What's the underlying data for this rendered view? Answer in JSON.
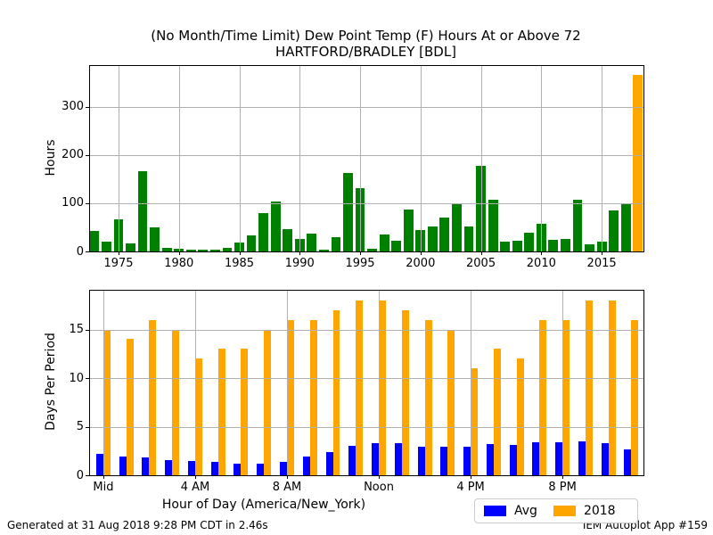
{
  "title": {
    "line1": "(No Month/Time Limit) Dew Point Temp (F) Hours At or Above 72",
    "line2": "HARTFORD/BRADLEY [BDL]"
  },
  "footer": {
    "left": "Generated at 31 Aug 2018 9:28 PM CDT in 2.46s",
    "right": "IEM Autoplot App #159"
  },
  "colors": {
    "green": "#008000",
    "orange": "#ffa500",
    "blue": "#0000ff",
    "grid": "#b0b0b0",
    "text": "#000000"
  },
  "legend": {
    "items": [
      {
        "label": "Avg",
        "color": "#0000ff"
      },
      {
        "label": "2018",
        "color": "#ffa500"
      }
    ]
  },
  "chart_data": [
    {
      "type": "bar",
      "name": "hours-at-or-above-72-by-year",
      "ylabel": "Hours",
      "x": [
        1973,
        1974,
        1975,
        1976,
        1977,
        1978,
        1979,
        1980,
        1981,
        1982,
        1983,
        1984,
        1985,
        1986,
        1987,
        1988,
        1989,
        1990,
        1991,
        1992,
        1993,
        1994,
        1995,
        1996,
        1997,
        1998,
        1999,
        2000,
        2001,
        2002,
        2003,
        2004,
        2005,
        2006,
        2007,
        2008,
        2009,
        2010,
        2011,
        2012,
        2013,
        2014,
        2015,
        2016,
        2017,
        2018
      ],
      "values": [
        42,
        20,
        66,
        17,
        166,
        49,
        7,
        5,
        4,
        3,
        4,
        7,
        19,
        33,
        80,
        103,
        46,
        26,
        37,
        4,
        29,
        162,
        131,
        5,
        36,
        23,
        86,
        45,
        51,
        70,
        98,
        51,
        177,
        107,
        20,
        23,
        38,
        57,
        24,
        26,
        108,
        14,
        21,
        85,
        100,
        365
      ],
      "highlight_x": 2018,
      "bar_color": "#008000",
      "highlight_color": "#ffa500",
      "bar_width": 0.8,
      "xlim": [
        1972.64,
        2018.46
      ],
      "ylim": [
        0,
        384
      ],
      "yticks": [
        0,
        100,
        200,
        300
      ],
      "xticks": [
        1975,
        1980,
        1985,
        1990,
        1995,
        2000,
        2005,
        2010,
        2015
      ],
      "grid": true,
      "grid_above_bars": true
    },
    {
      "type": "bar",
      "name": "days-per-period-by-hour",
      "ylabel": "Days Per Period",
      "xlabel": "Hour of Day (America/New_York)",
      "x": [
        0,
        1,
        2,
        3,
        4,
        5,
        6,
        7,
        8,
        9,
        10,
        11,
        12,
        13,
        14,
        15,
        16,
        17,
        18,
        19,
        20,
        21,
        22,
        23
      ],
      "series": [
        {
          "name": "Avg",
          "color": "#0000ff",
          "values": [
            2.2,
            1.9,
            1.8,
            1.6,
            1.5,
            1.4,
            1.2,
            1.2,
            1.4,
            1.9,
            2.4,
            3.0,
            3.3,
            3.3,
            2.9,
            2.9,
            2.9,
            3.2,
            3.1,
            3.4,
            3.4,
            3.5,
            3.3,
            2.7
          ]
        },
        {
          "name": "2018",
          "color": "#ffa500",
          "values": [
            15,
            14,
            16,
            15,
            12,
            13,
            13,
            15,
            16,
            16,
            17,
            18,
            18,
            17,
            16,
            15,
            11,
            13,
            12,
            16,
            16,
            18,
            18,
            16
          ]
        }
      ],
      "bar_width": 0.31,
      "xlim": [
        -0.58,
        23.53
      ],
      "ylim": [
        0,
        19
      ],
      "yticks": [
        0,
        5,
        10,
        15
      ],
      "xticks": [
        {
          "pos": 0,
          "label": "Mid"
        },
        {
          "pos": 4,
          "label": "4 AM"
        },
        {
          "pos": 8,
          "label": "8 AM"
        },
        {
          "pos": 12,
          "label": "Noon"
        },
        {
          "pos": 16,
          "label": "4 PM"
        },
        {
          "pos": 20,
          "label": "8 PM"
        }
      ],
      "grid": true,
      "grid_above_bars": true,
      "legend_position": "lower right"
    }
  ]
}
